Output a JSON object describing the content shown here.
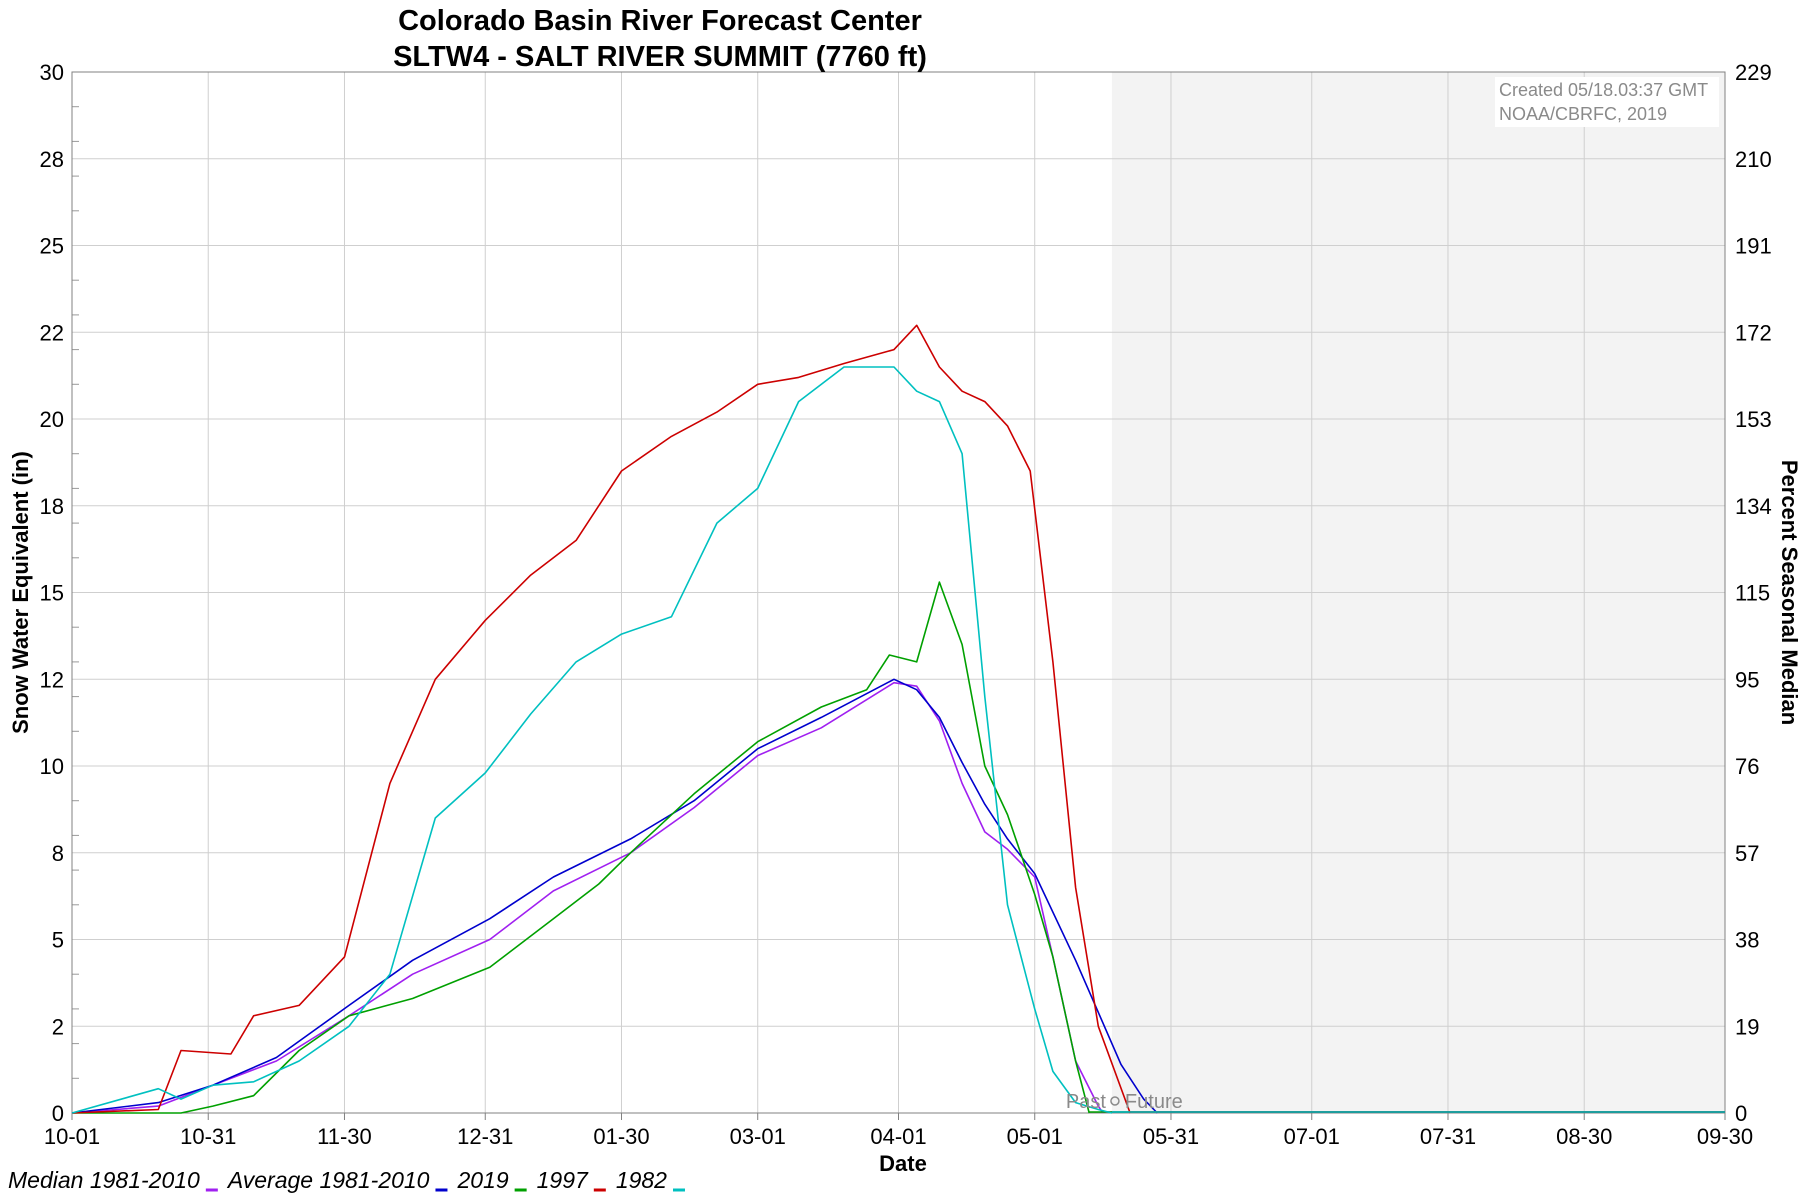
{
  "chart_data": {
    "type": "line",
    "title": "Colorado Basin River Forecast Center",
    "subtitle": "SLTW4 - SALT RIVER SUMMIT (7760 ft)",
    "xlabel": "Date",
    "ylabel": "Snow Water Equivalent (in)",
    "y2label": "Percent Seasonal Median",
    "x_domain": [
      "10-01",
      "09-30"
    ],
    "x_ticks": [
      "10-01",
      "10-31",
      "11-30",
      "12-31",
      "01-30",
      "03-01",
      "04-01",
      "05-01",
      "05-31",
      "07-01",
      "07-31",
      "08-30",
      "09-30"
    ],
    "ylim": [
      0,
      30
    ],
    "y_tick_labels": [
      "0",
      "2",
      "5",
      "8",
      "10",
      "12",
      "15",
      "18",
      "20",
      "22",
      "25",
      "28",
      "30"
    ],
    "y2lim": [
      0,
      229
    ],
    "y2_tick_labels": [
      "0",
      "19",
      "38",
      "57",
      "76",
      "95",
      "115",
      "134",
      "153",
      "172",
      "191",
      "210",
      "229"
    ],
    "grid": true,
    "legend_position": "bottom-left",
    "forecast_shading_start": "05-18",
    "divider_label": "Past",
    "divider_label_right": "Future",
    "notes": [
      "Created 05/18.03:37 GMT",
      "NOAA/CBRFC, 2019"
    ],
    "series": [
      {
        "name": "Median 1981-2010",
        "color": "#a020f0",
        "x": [
          "10-01",
          "10-20",
          "11-01",
          "11-15",
          "12-01",
          "12-15",
          "01-01",
          "01-15",
          "02-01",
          "02-15",
          "03-01",
          "03-15",
          "03-31",
          "04-05",
          "04-10",
          "04-15",
          "04-20",
          "04-25",
          "05-01",
          "05-05",
          "05-10",
          "05-15",
          "05-16"
        ],
        "y": [
          0,
          0.2,
          0.8,
          1.5,
          2.8,
          4.0,
          5.0,
          6.4,
          7.5,
          8.8,
          10.3,
          11.1,
          12.4,
          12.3,
          11.3,
          9.5,
          8.1,
          7.6,
          6.8,
          4.5,
          1.5,
          0.2,
          0
        ]
      },
      {
        "name": "Average 1981-2010",
        "color": "#0000cd",
        "x": [
          "10-01",
          "10-20",
          "11-01",
          "11-15",
          "12-01",
          "12-15",
          "01-01",
          "01-15",
          "02-01",
          "02-15",
          "03-01",
          "03-15",
          "03-31",
          "04-05",
          "04-10",
          "04-15",
          "04-20",
          "04-25",
          "05-01",
          "05-10",
          "05-20",
          "05-25",
          "05-28"
        ],
        "y": [
          0,
          0.3,
          0.8,
          1.6,
          3.1,
          4.4,
          5.6,
          6.8,
          7.9,
          9.0,
          10.5,
          11.4,
          12.5,
          12.2,
          11.4,
          10.1,
          8.9,
          7.9,
          6.9,
          4.4,
          1.4,
          0.4,
          0
        ]
      },
      {
        "name": "2019",
        "color": "#00a000",
        "x": [
          "10-01",
          "10-25",
          "11-01",
          "11-10",
          "11-20",
          "12-01",
          "12-15",
          "01-01",
          "01-15",
          "01-25",
          "02-01",
          "02-15",
          "03-01",
          "03-15",
          "03-25",
          "03-30",
          "04-05",
          "04-10",
          "04-15",
          "04-20",
          "04-25",
          "05-01",
          "05-05",
          "05-10",
          "05-13"
        ],
        "y": [
          0,
          0,
          0.2,
          0.5,
          1.8,
          2.8,
          3.3,
          4.2,
          5.6,
          6.6,
          7.5,
          9.2,
          10.7,
          11.7,
          12.2,
          13.2,
          13.0,
          15.3,
          13.5,
          10.0,
          8.6,
          6.3,
          4.5,
          1.5,
          0
        ]
      },
      {
        "name": "1997",
        "color": "#cc0000",
        "x": [
          "10-01",
          "10-20",
          "10-25",
          "11-05",
          "11-10",
          "11-20",
          "11-30",
          "12-10",
          "12-20",
          "12-31",
          "01-10",
          "01-20",
          "01-30",
          "02-10",
          "02-20",
          "03-01",
          "03-10",
          "03-20",
          "03-31",
          "04-05",
          "04-10",
          "04-15",
          "04-20",
          "04-25",
          "04-30",
          "05-05",
          "05-10",
          "05-15",
          "05-22"
        ],
        "y": [
          0,
          0.1,
          1.8,
          1.7,
          2.8,
          3.1,
          4.5,
          9.5,
          12.5,
          14.2,
          15.5,
          16.5,
          18.5,
          19.5,
          20.2,
          21.0,
          21.2,
          21.6,
          22.0,
          22.7,
          21.5,
          20.8,
          20.5,
          19.8,
          18.5,
          13.0,
          6.5,
          2.5,
          0
        ]
      },
      {
        "name": "1982",
        "color": "#00c0c0",
        "x": [
          "10-01",
          "10-20",
          "10-25",
          "11-01",
          "11-10",
          "11-20",
          "12-01",
          "12-10",
          "12-20",
          "12-31",
          "01-10",
          "01-20",
          "01-30",
          "02-10",
          "02-20",
          "03-01",
          "03-10",
          "03-20",
          "03-31",
          "04-05",
          "04-10",
          "04-15",
          "04-20",
          "04-25",
          "05-01",
          "05-05",
          "05-10",
          "05-15",
          "05-18"
        ],
        "y": [
          0,
          0.7,
          0.4,
          0.8,
          0.9,
          1.5,
          2.5,
          4.0,
          8.5,
          9.8,
          11.5,
          13.0,
          13.8,
          14.3,
          17.0,
          18.0,
          20.5,
          21.5,
          21.5,
          20.8,
          20.5,
          19.0,
          12.0,
          6.0,
          3.0,
          1.2,
          0.3,
          0.1,
          0
        ]
      }
    ]
  }
}
